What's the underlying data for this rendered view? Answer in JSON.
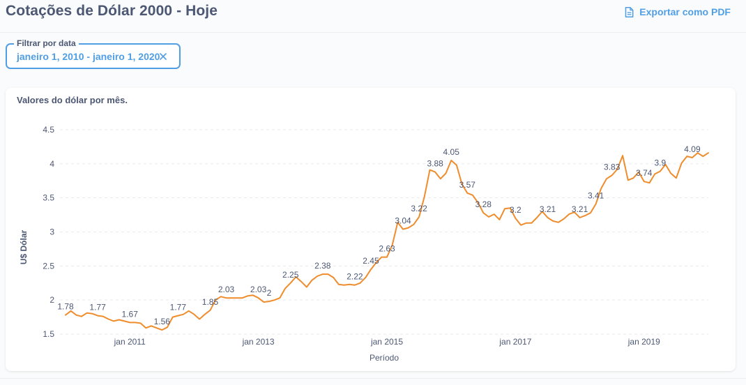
{
  "header": {
    "title": "Cotações de Dólar 2000 - Hoje",
    "export_label": "Exportar como PDF",
    "export_icon": "document-icon"
  },
  "filter": {
    "label": "Filtrar por data",
    "value": "janeiro 1, 2010 - janeiro 1, 2020",
    "clear_icon": "close-icon"
  },
  "card": {
    "title": "Valores do dólar por mês."
  },
  "colors": {
    "accent": "#509ee3",
    "line": "#ef8c2c",
    "text": "#4c5773"
  },
  "chart_data": {
    "type": "line",
    "xlabel": "Período",
    "ylabel": "U$ Dólar",
    "ylim": [
      1.5,
      4.5
    ],
    "yticks": [
      "1.5",
      "2",
      "2.5",
      "3",
      "3.5",
      "4",
      "4.5"
    ],
    "grid": "horizontal dashed",
    "x_range": [
      "2010-01",
      "2019-12"
    ],
    "xticks": [
      {
        "date": "2011-01",
        "label": "jan 2011"
      },
      {
        "date": "2013-01",
        "label": "jan 2013"
      },
      {
        "date": "2015-01",
        "label": "jan 2015"
      },
      {
        "date": "2017-01",
        "label": "jan 2017"
      },
      {
        "date": "2019-01",
        "label": "jan 2019"
      }
    ],
    "series": [
      {
        "points": [
          [
            "2010-01",
            1.78
          ],
          [
            "2010-02",
            1.84
          ],
          [
            "2010-03",
            1.78
          ],
          [
            "2010-04",
            1.76
          ],
          [
            "2010-05",
            1.81
          ],
          [
            "2010-06",
            1.8
          ],
          [
            "2010-07",
            1.77
          ],
          [
            "2010-08",
            1.76
          ],
          [
            "2010-09",
            1.72
          ],
          [
            "2010-10",
            1.69
          ],
          [
            "2010-11",
            1.71
          ],
          [
            "2010-12",
            1.69
          ],
          [
            "2011-01",
            1.67
          ],
          [
            "2011-02",
            1.67
          ],
          [
            "2011-03",
            1.66
          ],
          [
            "2011-04",
            1.59
          ],
          [
            "2011-05",
            1.62
          ],
          [
            "2011-06",
            1.59
          ],
          [
            "2011-07",
            1.56
          ],
          [
            "2011-08",
            1.6
          ],
          [
            "2011-09",
            1.75
          ],
          [
            "2011-10",
            1.77
          ],
          [
            "2011-11",
            1.79
          ],
          [
            "2011-12",
            1.84
          ],
          [
            "2012-01",
            1.79
          ],
          [
            "2012-02",
            1.72
          ],
          [
            "2012-03",
            1.79
          ],
          [
            "2012-04",
            1.85
          ],
          [
            "2012-05",
            2.0
          ],
          [
            "2012-06",
            2.05
          ],
          [
            "2012-07",
            2.03
          ],
          [
            "2012-08",
            2.03
          ],
          [
            "2012-09",
            2.03
          ],
          [
            "2012-10",
            2.03
          ],
          [
            "2012-11",
            2.06
          ],
          [
            "2012-12",
            2.07
          ],
          [
            "2013-01",
            2.03
          ],
          [
            "2013-02",
            1.97
          ],
          [
            "2013-03",
            1.98
          ],
          [
            "2013-04",
            2.0
          ],
          [
            "2013-05",
            2.03
          ],
          [
            "2013-06",
            2.17
          ],
          [
            "2013-07",
            2.25
          ],
          [
            "2013-08",
            2.34
          ],
          [
            "2013-09",
            2.27
          ],
          [
            "2013-10",
            2.19
          ],
          [
            "2013-11",
            2.29
          ],
          [
            "2013-12",
            2.35
          ],
          [
            "2014-01",
            2.38
          ],
          [
            "2014-02",
            2.38
          ],
          [
            "2014-03",
            2.33
          ],
          [
            "2014-04",
            2.23
          ],
          [
            "2014-05",
            2.22
          ],
          [
            "2014-06",
            2.23
          ],
          [
            "2014-07",
            2.22
          ],
          [
            "2014-08",
            2.25
          ],
          [
            "2014-09",
            2.33
          ],
          [
            "2014-10",
            2.45
          ],
          [
            "2014-11",
            2.55
          ],
          [
            "2014-12",
            2.63
          ],
          [
            "2015-01",
            2.63
          ],
          [
            "2015-02",
            2.81
          ],
          [
            "2015-03",
            3.14
          ],
          [
            "2015-04",
            3.04
          ],
          [
            "2015-05",
            3.06
          ],
          [
            "2015-06",
            3.11
          ],
          [
            "2015-07",
            3.22
          ],
          [
            "2015-08",
            3.52
          ],
          [
            "2015-09",
            3.91
          ],
          [
            "2015-10",
            3.88
          ],
          [
            "2015-11",
            3.78
          ],
          [
            "2015-12",
            3.86
          ],
          [
            "2016-01",
            4.05
          ],
          [
            "2016-02",
            3.98
          ],
          [
            "2016-03",
            3.7
          ],
          [
            "2016-04",
            3.57
          ],
          [
            "2016-05",
            3.54
          ],
          [
            "2016-06",
            3.43
          ],
          [
            "2016-07",
            3.28
          ],
          [
            "2016-08",
            3.22
          ],
          [
            "2016-09",
            3.26
          ],
          [
            "2016-10",
            3.18
          ],
          [
            "2016-11",
            3.34
          ],
          [
            "2016-12",
            3.35
          ],
          [
            "2017-01",
            3.2
          ],
          [
            "2017-02",
            3.1
          ],
          [
            "2017-03",
            3.13
          ],
          [
            "2017-04",
            3.13
          ],
          [
            "2017-05",
            3.21
          ],
          [
            "2017-06",
            3.3
          ],
          [
            "2017-07",
            3.21
          ],
          [
            "2017-08",
            3.16
          ],
          [
            "2017-09",
            3.14
          ],
          [
            "2017-10",
            3.19
          ],
          [
            "2017-11",
            3.26
          ],
          [
            "2017-12",
            3.29
          ],
          [
            "2018-01",
            3.21
          ],
          [
            "2018-02",
            3.24
          ],
          [
            "2018-03",
            3.28
          ],
          [
            "2018-04",
            3.41
          ],
          [
            "2018-05",
            3.64
          ],
          [
            "2018-06",
            3.78
          ],
          [
            "2018-07",
            3.83
          ],
          [
            "2018-08",
            3.92
          ],
          [
            "2018-09",
            4.12
          ],
          [
            "2018-10",
            3.76
          ],
          [
            "2018-11",
            3.79
          ],
          [
            "2018-12",
            3.88
          ],
          [
            "2019-01",
            3.74
          ],
          [
            "2019-02",
            3.72
          ],
          [
            "2019-03",
            3.85
          ],
          [
            "2019-04",
            3.89
          ],
          [
            "2019-05",
            3.99
          ],
          [
            "2019-06",
            3.86
          ],
          [
            "2019-07",
            3.79
          ],
          [
            "2019-08",
            4.01
          ],
          [
            "2019-09",
            4.11
          ],
          [
            "2019-10",
            4.09
          ],
          [
            "2019-11",
            4.16
          ],
          [
            "2019-12",
            4.11
          ],
          [
            "2020-01",
            4.16
          ]
        ]
      }
    ],
    "data_labels": [
      {
        "date": "2010-01",
        "label": "1.78"
      },
      {
        "date": "2010-07",
        "label": "1.77"
      },
      {
        "date": "2011-01",
        "label": "1.67"
      },
      {
        "date": "2011-07",
        "label": "1.56"
      },
      {
        "date": "2011-10",
        "label": "1.77"
      },
      {
        "date": "2012-04",
        "label": "1.85"
      },
      {
        "date": "2012-07",
        "label": "2.03"
      },
      {
        "date": "2013-01",
        "label": "2.03"
      },
      {
        "date": "2013-03",
        "label": "2"
      },
      {
        "date": "2013-07",
        "label": "2.25"
      },
      {
        "date": "2014-01",
        "label": "2.38"
      },
      {
        "date": "2014-07",
        "label": "2.22"
      },
      {
        "date": "2014-10",
        "label": "2.45"
      },
      {
        "date": "2015-01",
        "label": "2.63"
      },
      {
        "date": "2015-04",
        "label": "3.04"
      },
      {
        "date": "2015-07",
        "label": "3.22"
      },
      {
        "date": "2015-10",
        "label": "3.88"
      },
      {
        "date": "2016-01",
        "label": "4.05"
      },
      {
        "date": "2016-04",
        "label": "3.57"
      },
      {
        "date": "2016-07",
        "label": "3.28"
      },
      {
        "date": "2017-01",
        "label": "3.2"
      },
      {
        "date": "2017-07",
        "label": "3.21"
      },
      {
        "date": "2018-01",
        "label": "3.21"
      },
      {
        "date": "2018-04",
        "label": "3.41"
      },
      {
        "date": "2018-07",
        "label": "3.83"
      },
      {
        "date": "2019-01",
        "label": "3.74"
      },
      {
        "date": "2019-04",
        "label": "3.9"
      },
      {
        "date": "2019-10",
        "label": "4.09"
      }
    ]
  }
}
